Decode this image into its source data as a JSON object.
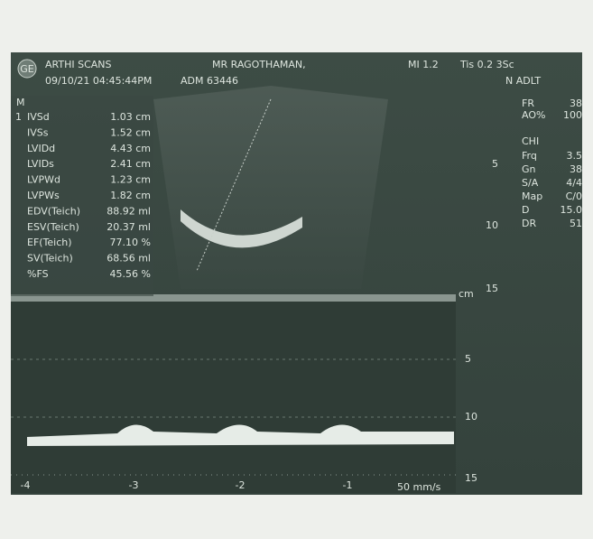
{
  "header": {
    "logo": "GE",
    "clinic": "ARTHI SCANS",
    "patient": "MR RAGOTHAMAN,",
    "mi": "MI 1.2",
    "tis": "Tis 0.2 3Sc",
    "datetime": "09/10/21 04:45:44PM",
    "adm": "ADM 63446",
    "preset": "N ADLT"
  },
  "measurements": {
    "heading": "M",
    "index": "1",
    "rows": [
      {
        "label": "IVSd",
        "value": "1.03 cm"
      },
      {
        "label": "IVSs",
        "value": "1.52 cm"
      },
      {
        "label": "LVIDd",
        "value": "4.43 cm"
      },
      {
        "label": "LVIDs",
        "value": "2.41 cm"
      },
      {
        "label": "LVPWd",
        "value": "1.23 cm"
      },
      {
        "label": "LVPWs",
        "value": "1.82 cm"
      },
      {
        "label": "EDV(Teich)",
        "value": "88.92 ml"
      },
      {
        "label": "ESV(Teich)",
        "value": "20.37 ml"
      },
      {
        "label": "EF(Teich)",
        "value": "77.10 %"
      },
      {
        "label": "SV(Teich)",
        "value": "68.56 ml"
      },
      {
        "label": "%FS",
        "value": "45.56 %"
      }
    ]
  },
  "settings": {
    "top": [
      {
        "label": "FR",
        "value": "38"
      },
      {
        "label": "AO%",
        "value": "100"
      }
    ],
    "mode": "CHI",
    "rows": [
      {
        "label": "Frq",
        "value": "3.5"
      },
      {
        "label": "Gn",
        "value": "38"
      },
      {
        "label": "S/A",
        "value": "4/4"
      },
      {
        "label": "Map",
        "value": "C/0"
      },
      {
        "label": "D",
        "value": "15.0"
      },
      {
        "label": "DR",
        "value": "51"
      }
    ]
  },
  "depth_scale": {
    "ticks": [
      "5",
      "10",
      "15"
    ],
    "unit": "cm"
  },
  "mmode": {
    "depth_ticks": [
      "5",
      "10",
      "15"
    ],
    "time_ticks": [
      "-4",
      "-3",
      "-2",
      "-1"
    ],
    "sweep": "50 mm/s"
  }
}
